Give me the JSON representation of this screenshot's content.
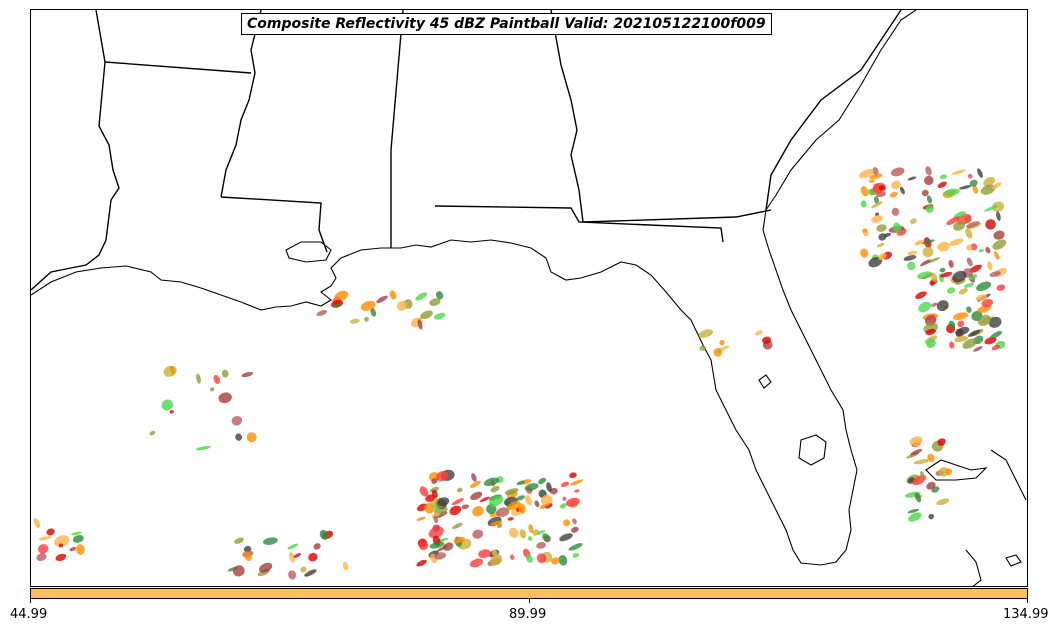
{
  "title": "Composite Reflectivity 45 dBZ Paintball Valid: 202105122100f009",
  "colors": {
    "colorbar": "#ffbf60",
    "paint": [
      "#ff3b3b",
      "#ff8c00",
      "#ffb347",
      "#4ad84a",
      "#2e8b3e",
      "#8f9c3a",
      "#a3403f",
      "#b85c5c",
      "#404040",
      "#c8b036",
      "#dd0000"
    ]
  },
  "colorbar": {
    "ticks": [
      "44.99",
      "89.99",
      "134.99"
    ]
  }
}
